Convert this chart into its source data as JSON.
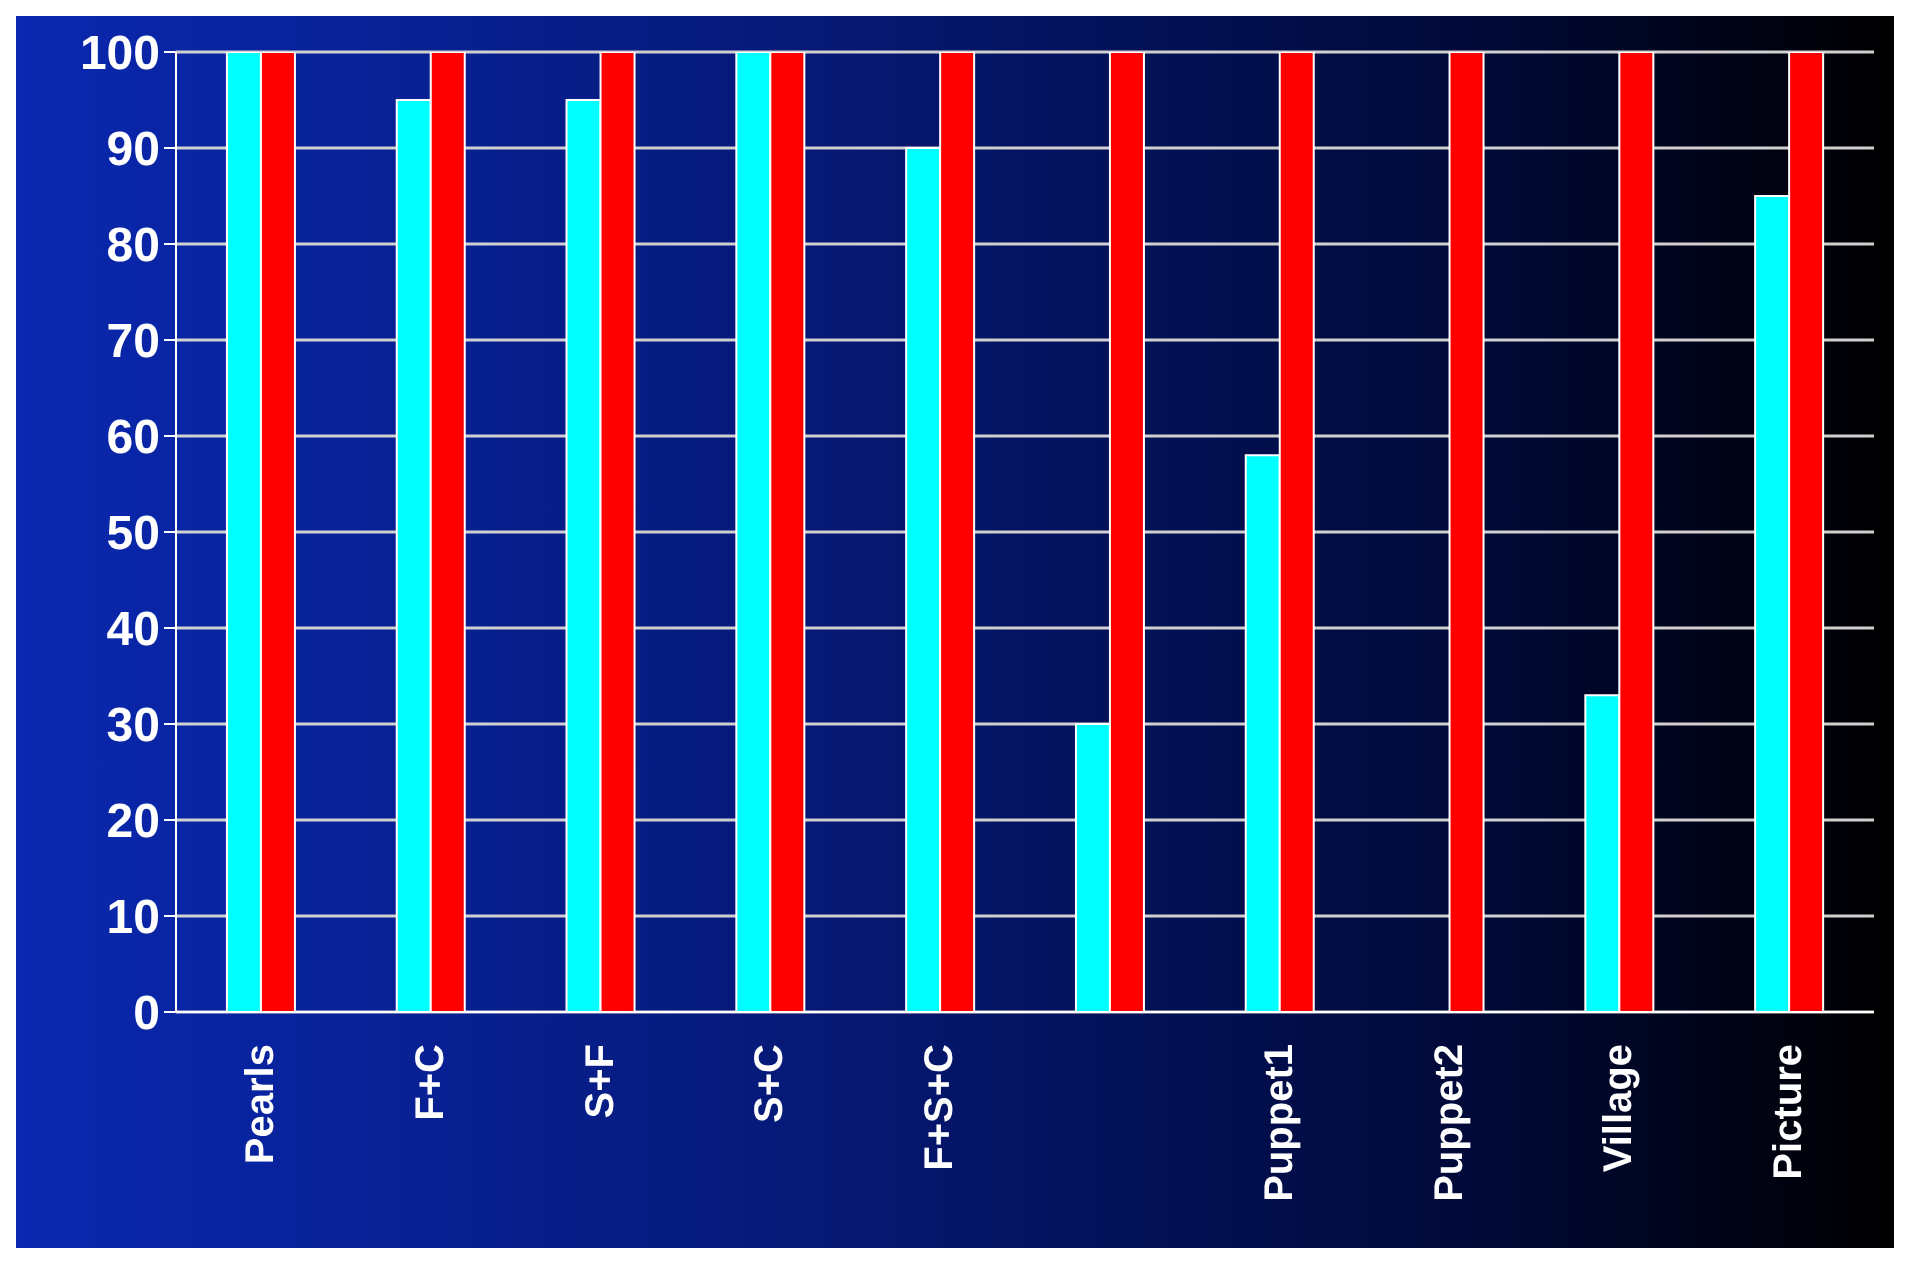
{
  "chart_data": {
    "type": "bar",
    "categories": [
      "Pearls",
      "F+C",
      "S+F",
      "S+C",
      "F+S+C",
      null,
      "Puppet1",
      "Puppet2",
      "Village",
      "Picture"
    ],
    "series": [
      {
        "color": "#00ffff",
        "values": [
          100,
          95,
          95,
          100,
          90,
          30,
          58,
          0,
          33,
          85
        ]
      },
      {
        "color": "#ff0000",
        "values": [
          100,
          100,
          100,
          100,
          100,
          100,
          100,
          100,
          100,
          100
        ]
      }
    ],
    "ylim": [
      0,
      100
    ],
    "yticks": [
      0,
      10,
      20,
      30,
      40,
      50,
      60,
      70,
      80,
      90,
      100
    ],
    "grid": "y",
    "legend": false
  }
}
